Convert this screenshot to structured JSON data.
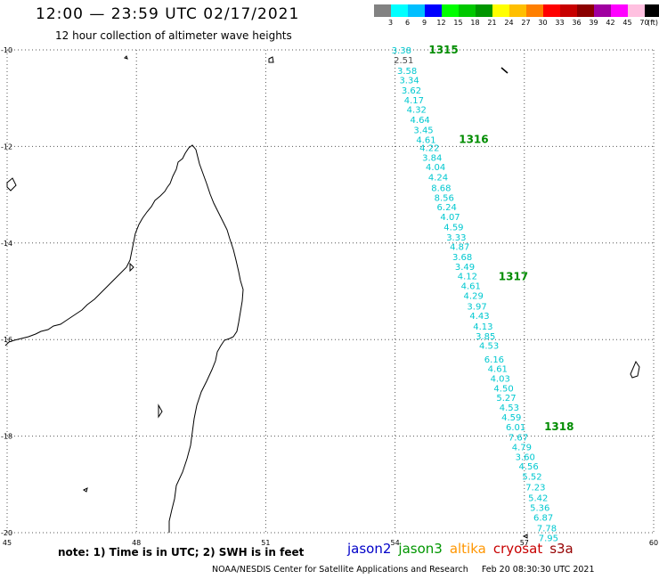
{
  "title": "12:00 — 23:59 UTC 02/17/2021",
  "subtitle": "12 hour collection of altimeter wave heights",
  "colors": {
    "grid": "#555555",
    "coastline": "#000000",
    "wave_label": "#00c8d0",
    "pass_label": "#008c00",
    "first_label": "#4d4d4d"
  },
  "legend": {
    "values": [
      "3",
      "6",
      "9",
      "12",
      "15",
      "18",
      "21",
      "24",
      "27",
      "30",
      "33",
      "36",
      "39",
      "42",
      "45",
      "70"
    ],
    "unit": "(ft)",
    "colors": [
      "#828282",
      "#00ffff",
      "#00bfff",
      "#0000ff",
      "#00ff00",
      "#00c800",
      "#009600",
      "#ffff00",
      "#ffbf00",
      "#ff7f00",
      "#ff0000",
      "#c80000",
      "#8b0000",
      "#a000a0",
      "#ff00ff",
      "#ffc0e0",
      "#000000"
    ]
  },
  "axes": {
    "lon_labels": [
      "45",
      "48",
      "51",
      "54",
      "57",
      "60"
    ],
    "lat_labels": [
      "-10",
      "-12",
      "-14",
      "-16",
      "-18",
      "-20"
    ]
  },
  "map_data": {
    "lon_range": [
      45,
      60
    ],
    "lat_range": [
      -20,
      -10
    ],
    "wave_points": [
      {
        "lon": 54.15,
        "lat": -10.0,
        "value": "3.38"
      },
      {
        "lon": 54.2,
        "lat": -10.2,
        "value": "2.51"
      },
      {
        "lon": 54.28,
        "lat": -10.42,
        "value": "3.58"
      },
      {
        "lon": 54.33,
        "lat": -10.62,
        "value": "3.34"
      },
      {
        "lon": 54.38,
        "lat": -10.83,
        "value": "3.62"
      },
      {
        "lon": 54.44,
        "lat": -11.03,
        "value": "4.17"
      },
      {
        "lon": 54.5,
        "lat": -11.23,
        "value": "4.32"
      },
      {
        "lon": 54.58,
        "lat": -11.44,
        "value": "4.64"
      },
      {
        "lon": 54.66,
        "lat": -11.65,
        "value": "3.45"
      },
      {
        "lon": 54.72,
        "lat": -11.85,
        "value": "4.61"
      },
      {
        "lon": 54.8,
        "lat": -12.02,
        "value": "4.22"
      },
      {
        "lon": 54.86,
        "lat": -12.22,
        "value": "3.84"
      },
      {
        "lon": 54.94,
        "lat": -12.42,
        "value": "4.04"
      },
      {
        "lon": 55.0,
        "lat": -12.63,
        "value": "4.24"
      },
      {
        "lon": 55.07,
        "lat": -12.85,
        "value": "8.68"
      },
      {
        "lon": 55.14,
        "lat": -13.05,
        "value": "8.56"
      },
      {
        "lon": 55.2,
        "lat": -13.25,
        "value": "6.24"
      },
      {
        "lon": 55.28,
        "lat": -13.45,
        "value": "4.07"
      },
      {
        "lon": 55.36,
        "lat": -13.66,
        "value": "4.59"
      },
      {
        "lon": 55.42,
        "lat": -13.87,
        "value": "3.33"
      },
      {
        "lon": 55.5,
        "lat": -14.07,
        "value": "4.87"
      },
      {
        "lon": 55.56,
        "lat": -14.28,
        "value": "3.68"
      },
      {
        "lon": 55.62,
        "lat": -14.48,
        "value": "3.49"
      },
      {
        "lon": 55.68,
        "lat": -14.68,
        "value": "4.12"
      },
      {
        "lon": 55.76,
        "lat": -14.88,
        "value": "4.61"
      },
      {
        "lon": 55.82,
        "lat": -15.08,
        "value": "4.29"
      },
      {
        "lon": 55.9,
        "lat": -15.3,
        "value": "3.97"
      },
      {
        "lon": 55.96,
        "lat": -15.5,
        "value": "4.43"
      },
      {
        "lon": 56.04,
        "lat": -15.72,
        "value": "4.13"
      },
      {
        "lon": 56.1,
        "lat": -15.92,
        "value": "3.85"
      },
      {
        "lon": 56.18,
        "lat": -16.12,
        "value": "4.53"
      },
      {
        "lon": 56.3,
        "lat": -16.4,
        "value": "6.16"
      },
      {
        "lon": 56.38,
        "lat": -16.6,
        "value": "4.61"
      },
      {
        "lon": 56.44,
        "lat": -16.8,
        "value": "4.03"
      },
      {
        "lon": 56.52,
        "lat": -17.0,
        "value": "4.50"
      },
      {
        "lon": 56.58,
        "lat": -17.2,
        "value": "5.27"
      },
      {
        "lon": 56.65,
        "lat": -17.4,
        "value": "4.53"
      },
      {
        "lon": 56.7,
        "lat": -17.6,
        "value": "4.59"
      },
      {
        "lon": 56.8,
        "lat": -17.8,
        "value": "6.01"
      },
      {
        "lon": 56.86,
        "lat": -18.02,
        "value": "7.67"
      },
      {
        "lon": 56.94,
        "lat": -18.22,
        "value": "4.79"
      },
      {
        "lon": 57.02,
        "lat": -18.42,
        "value": "3.60"
      },
      {
        "lon": 57.1,
        "lat": -18.62,
        "value": "4.56"
      },
      {
        "lon": 57.18,
        "lat": -18.83,
        "value": "5.52"
      },
      {
        "lon": 57.26,
        "lat": -19.05,
        "value": "7.23"
      },
      {
        "lon": 57.32,
        "lat": -19.27,
        "value": "5.42"
      },
      {
        "lon": 57.36,
        "lat": -19.47,
        "value": "5.36"
      },
      {
        "lon": 57.44,
        "lat": -19.68,
        "value": "6.87"
      },
      {
        "lon": 57.52,
        "lat": -19.9,
        "value": "7.78"
      },
      {
        "lon": 57.56,
        "lat": -20.1,
        "value": "7.95"
      }
    ],
    "pass_labels": [
      {
        "lon": 54.78,
        "lat": -10.0,
        "text": "1315"
      },
      {
        "lon": 55.48,
        "lat": -11.85,
        "text": "1316"
      },
      {
        "lon": 56.4,
        "lat": -14.7,
        "text": "1317"
      },
      {
        "lon": 57.46,
        "lat": -17.8,
        "text": "1318"
      }
    ]
  },
  "note": "note: 1) Time is in UTC; 2) SWH is in feet",
  "satellites": [
    {
      "name": "jason2",
      "color": "#0000c8"
    },
    {
      "name": "jason3",
      "color": "#009600"
    },
    {
      "name": "altika",
      "color": "#ff9600"
    },
    {
      "name": "cryosat",
      "color": "#c80000"
    },
    {
      "name": "s3a",
      "color": "#960000"
    }
  ],
  "footer": {
    "credit": "NOAA/NESDIS Center for Satellite Applications and Research",
    "timestamp": "Feb 20 08:30:30 UTC 2021"
  }
}
